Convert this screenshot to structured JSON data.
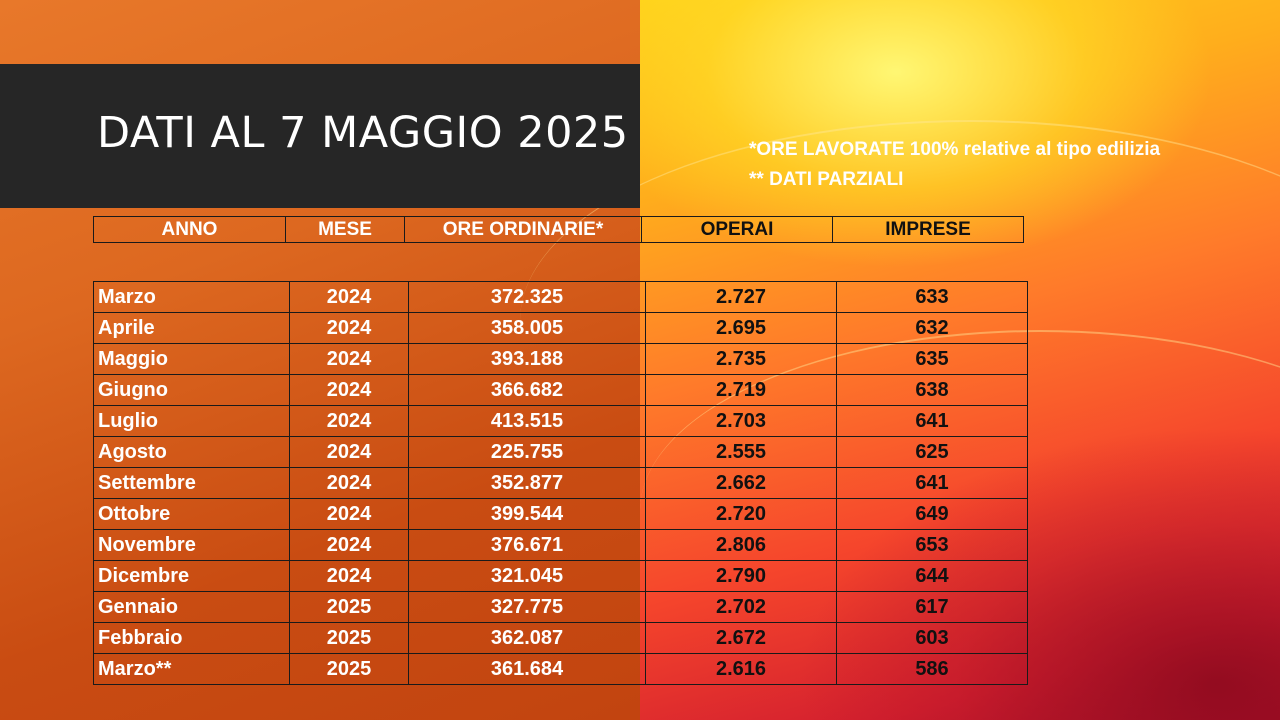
{
  "title": "DATI AL 7 MAGGIO 2025",
  "notes": [
    "*ORE LAVORATE 100% relative al tipo edilizia",
    "** DATI PARZIALI"
  ],
  "table": {
    "headers": [
      "ANNO",
      "MESE",
      "ORE ORDINARIE*",
      "OPERAI",
      "IMPRESE"
    ],
    "rows": [
      [
        "Marzo",
        "2024",
        "372.325",
        "2.727",
        "633"
      ],
      [
        "Aprile",
        "2024",
        "358.005",
        "2.695",
        "632"
      ],
      [
        "Maggio",
        "2024",
        "393.188",
        "2.735",
        "635"
      ],
      [
        "Giugno",
        "2024",
        "366.682",
        "2.719",
        "638"
      ],
      [
        "Luglio",
        "2024",
        "413.515",
        "2.703",
        "641"
      ],
      [
        "Agosto",
        "2024",
        "225.755",
        "2.555",
        "625"
      ],
      [
        "Settembre",
        "2024",
        "352.877",
        "2.662",
        "641"
      ],
      [
        "Ottobre",
        "2024",
        "399.544",
        "2.720",
        "649"
      ],
      [
        "Novembre",
        "2024",
        "376.671",
        "2.806",
        "653"
      ],
      [
        "Dicembre",
        "2024",
        "321.045",
        "2.790",
        "644"
      ],
      [
        "Gennaio",
        "2025",
        "327.775",
        "2.702",
        "617"
      ],
      [
        "Febbraio",
        "2025",
        "362.087",
        "2.672",
        "603"
      ],
      [
        "Marzo**",
        "2025",
        "361.684",
        "2.616",
        "586"
      ]
    ]
  },
  "colors": {
    "title_band": "#262626",
    "left_background": "#dd6820",
    "right_background": "#ff7a2a",
    "text_light": "#ffffff",
    "text_dark": "#111111"
  }
}
